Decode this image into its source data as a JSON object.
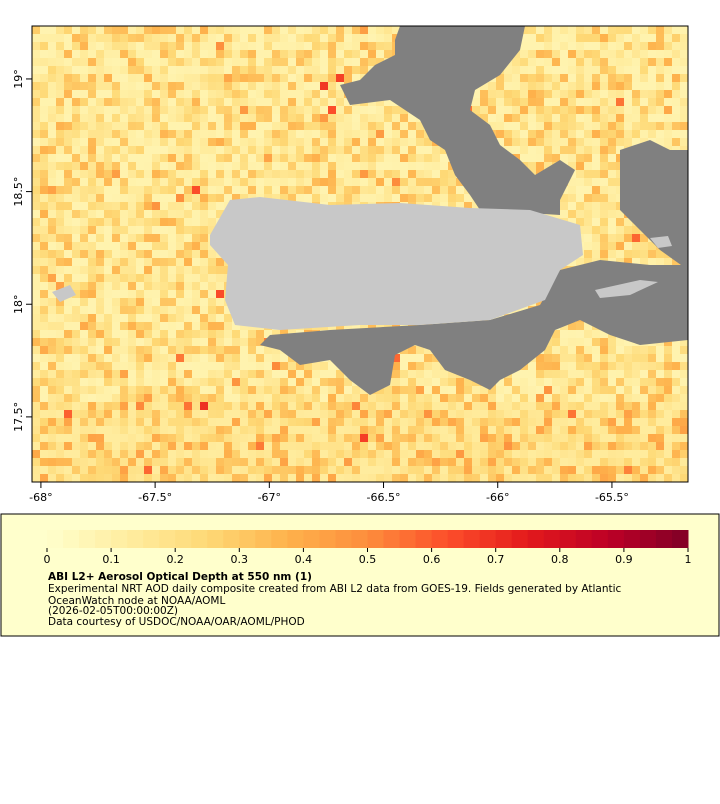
{
  "chart_data": {
    "type": "heatmap-map",
    "xlim": [
      -68.039,
      -65.167
    ],
    "ylim": [
      17.211,
      19.235
    ],
    "xticks": [
      {
        "value": -68,
        "label": "-68°"
      },
      {
        "value": -67.5,
        "label": "-67.5°"
      },
      {
        "value": -67,
        "label": "-67°"
      },
      {
        "value": -66.5,
        "label": "-66.5°"
      },
      {
        "value": -66,
        "label": "-66°"
      },
      {
        "value": -65.5,
        "label": "-65.5°"
      }
    ],
    "yticks": [
      {
        "value": 17.5,
        "label": "17.5°"
      },
      {
        "value": 18,
        "label": "18°"
      },
      {
        "value": 18.5,
        "label": "18.5°"
      },
      {
        "value": 19,
        "label": "19°"
      }
    ],
    "colorbar": {
      "lim": [
        0,
        1
      ],
      "ticks": [
        0,
        0.1,
        0.2,
        0.3,
        0.4,
        0.5,
        0.6,
        0.7,
        0.8,
        0.9,
        1
      ],
      "colormap": [
        "#ffffcc",
        "#ffeda0",
        "#fed976",
        "#feb24c",
        "#fd8d3c",
        "#fc4e2a",
        "#e31a1c",
        "#bd0026",
        "#800026"
      ]
    },
    "legend": {
      "title": "ABI L2+ Aerosol Optical Depth at 550 nm (1)",
      "lines": [
        "Experimental NRT AOD daily composite created from ABI L2 data from GOES-19. Fields generated by Atlantic",
        "OceanWatch node at NOAA/AOML",
        "(2026-02-05T00:00:00Z)",
        "Data courtesy of USDOC/NOAA/OAR/AOML/PHOD"
      ]
    }
  }
}
